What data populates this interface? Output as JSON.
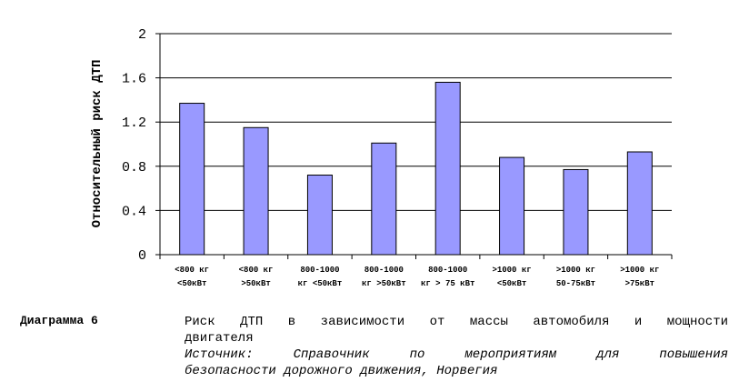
{
  "chart_data": {
    "type": "bar",
    "ylabel": "Относительный риск ДТП",
    "ylim": [
      0,
      2
    ],
    "yticks": [
      "0",
      "0.4",
      "0.8",
      "1.2",
      "1.6",
      "2"
    ],
    "grid": true,
    "bar_color": "#9999ff",
    "categories": [
      [
        "<800 кг",
        "<50кВт"
      ],
      [
        "<800 кг",
        ">50кВт"
      ],
      [
        "800-1000",
        "кг <50кВт"
      ],
      [
        "800-1000",
        "кг >50кВт"
      ],
      [
        "800-1000",
        "кг > 75 кВт"
      ],
      [
        ">1000 кг",
        "<50кВт"
      ],
      [
        ">1000 кг",
        "50-75кВт"
      ],
      [
        ">1000 кг",
        ">75кВт"
      ]
    ],
    "values": [
      1.37,
      1.15,
      0.72,
      1.01,
      1.56,
      0.88,
      0.77,
      0.93
    ]
  },
  "caption": {
    "label": "Диаграмма 6",
    "line1": "Риск ДТП в зависимости от массы автомобиля и мощности",
    "line2": "двигателя",
    "line3": "Источник: Справочник по мероприятиям для повышения",
    "line4": "безопасности дорожного движения, Норвегия"
  }
}
